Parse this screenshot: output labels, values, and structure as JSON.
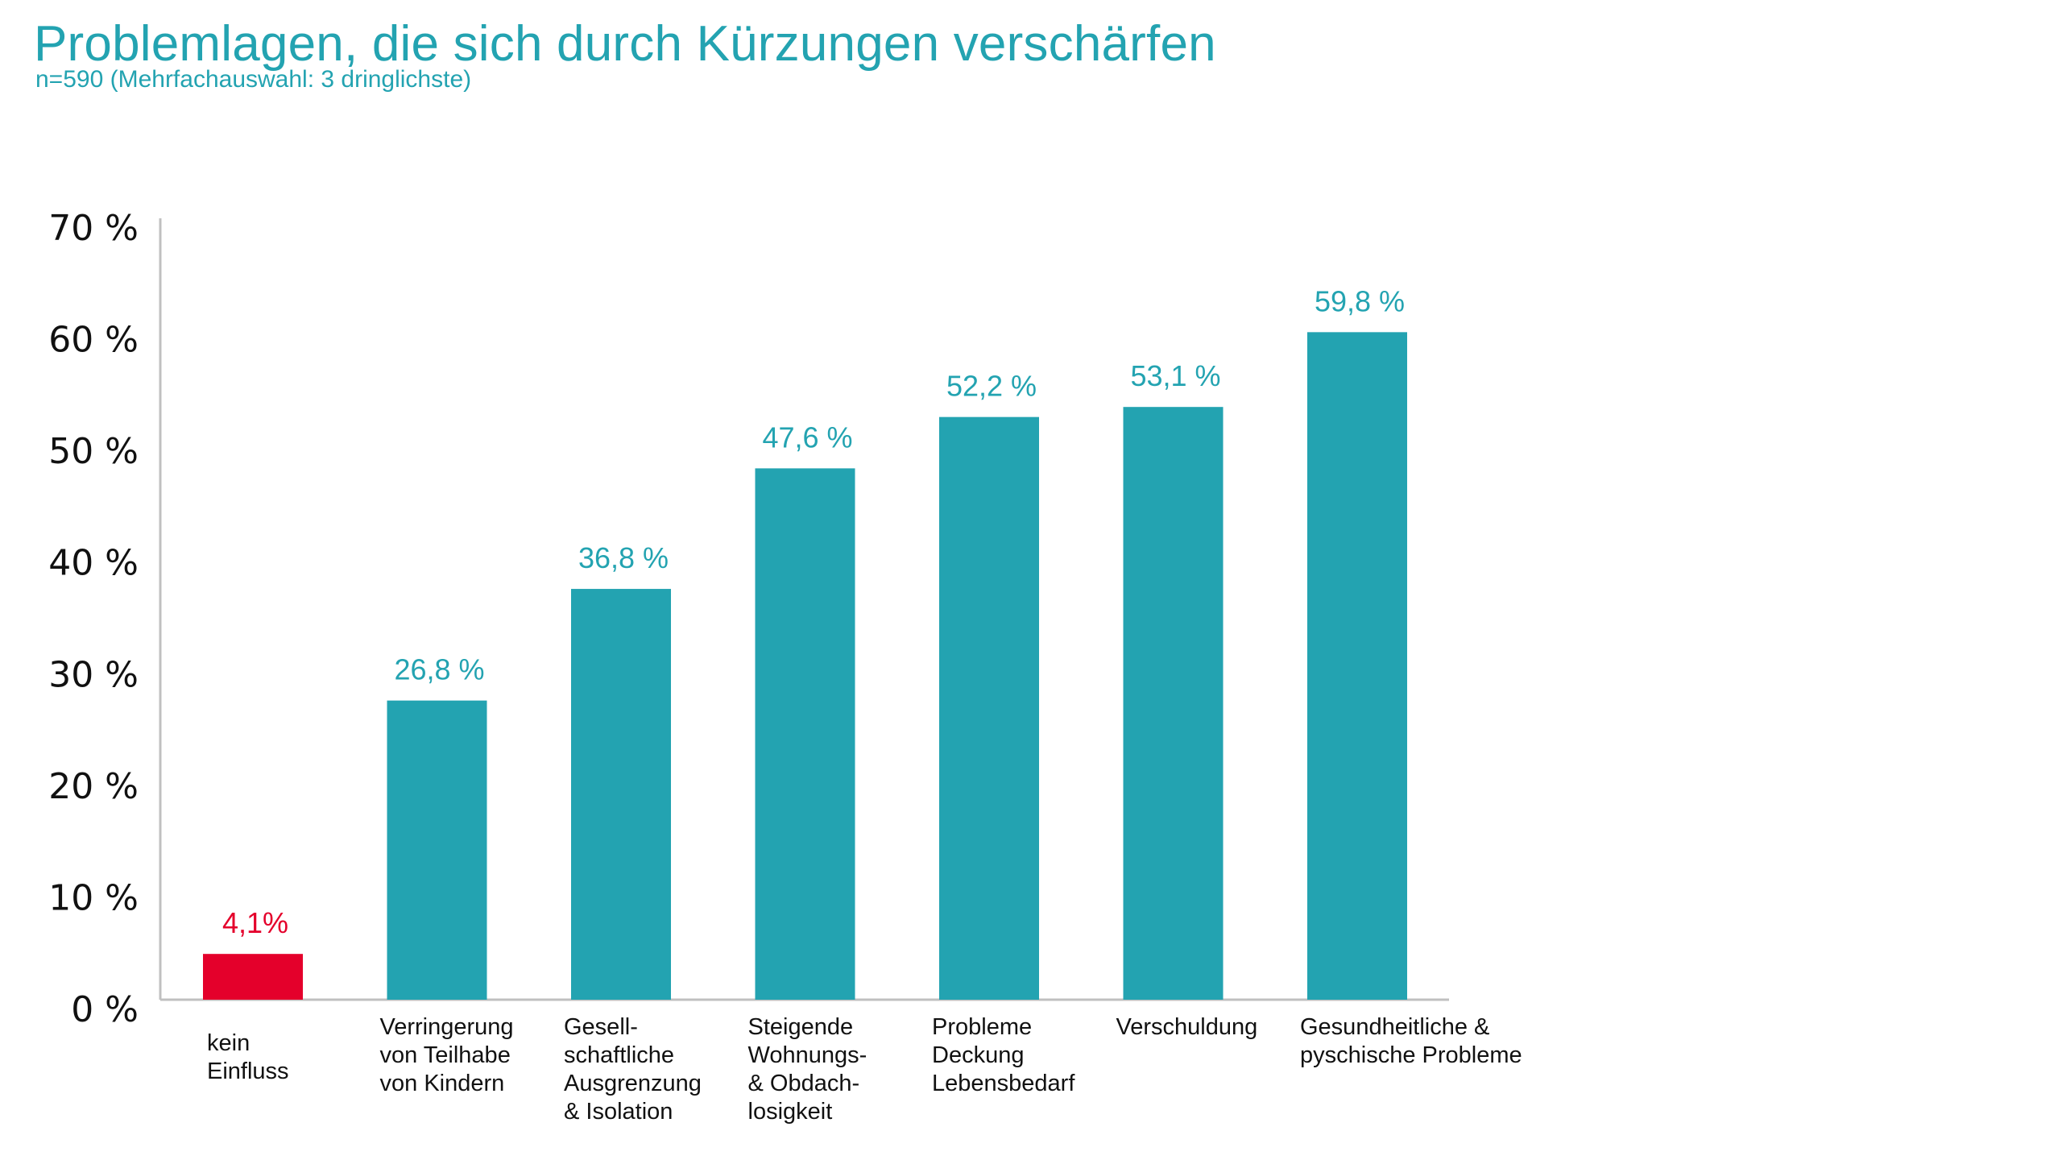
{
  "header": {
    "title": "Problemlagen, die sich durch Kürzungen verschärfen",
    "subtitle": "n=590 (Mehrfachauswahl: 3 dringlichste)"
  },
  "colors": {
    "teal": "#23a3b1",
    "red": "#e4002b",
    "axis": "#c0c0c0",
    "text": "#111111"
  },
  "chart_data": {
    "type": "bar",
    "title": "Problemlagen, die sich durch Kürzungen verschärfen",
    "subtitle": "n=590 (Mehrfachauswahl: 3 dringlichste)",
    "xlabel": "",
    "ylabel": "",
    "ylim": [
      0,
      70
    ],
    "yticks": [
      0,
      10,
      20,
      30,
      40,
      50,
      60,
      70
    ],
    "ytick_labels": [
      "0 %",
      "10 %",
      "20 %",
      "30 %",
      "40 %",
      "50 %",
      "60 %",
      "70 %"
    ],
    "grid": false,
    "legend": "none",
    "categories": [
      [
        "kein",
        "Einfluss"
      ],
      [
        "Verringerung",
        "von Teilhabe",
        "von Kindern"
      ],
      [
        "Gesell-",
        "schaftliche",
        "Ausgrenzung",
        "& Isolation"
      ],
      [
        "Steigende",
        "Wohnungs-",
        "& Obdach-",
        "losigkeit"
      ],
      [
        "Probleme",
        "Deckung",
        "Lebensbedarf"
      ],
      [
        "Verschuldung"
      ],
      [
        "Gesundheitliche &",
        "pyschische Probleme"
      ]
    ],
    "values": [
      4.1,
      26.8,
      36.8,
      47.6,
      52.2,
      53.1,
      59.8
    ],
    "value_labels": [
      "4,1%",
      "26,8 %",
      "36,8 %",
      "47,6 %",
      "52,2 %",
      "53,1 %",
      "59,8 %"
    ],
    "bar_colors": [
      "red",
      "teal",
      "teal",
      "teal",
      "teal",
      "teal",
      "teal"
    ]
  }
}
